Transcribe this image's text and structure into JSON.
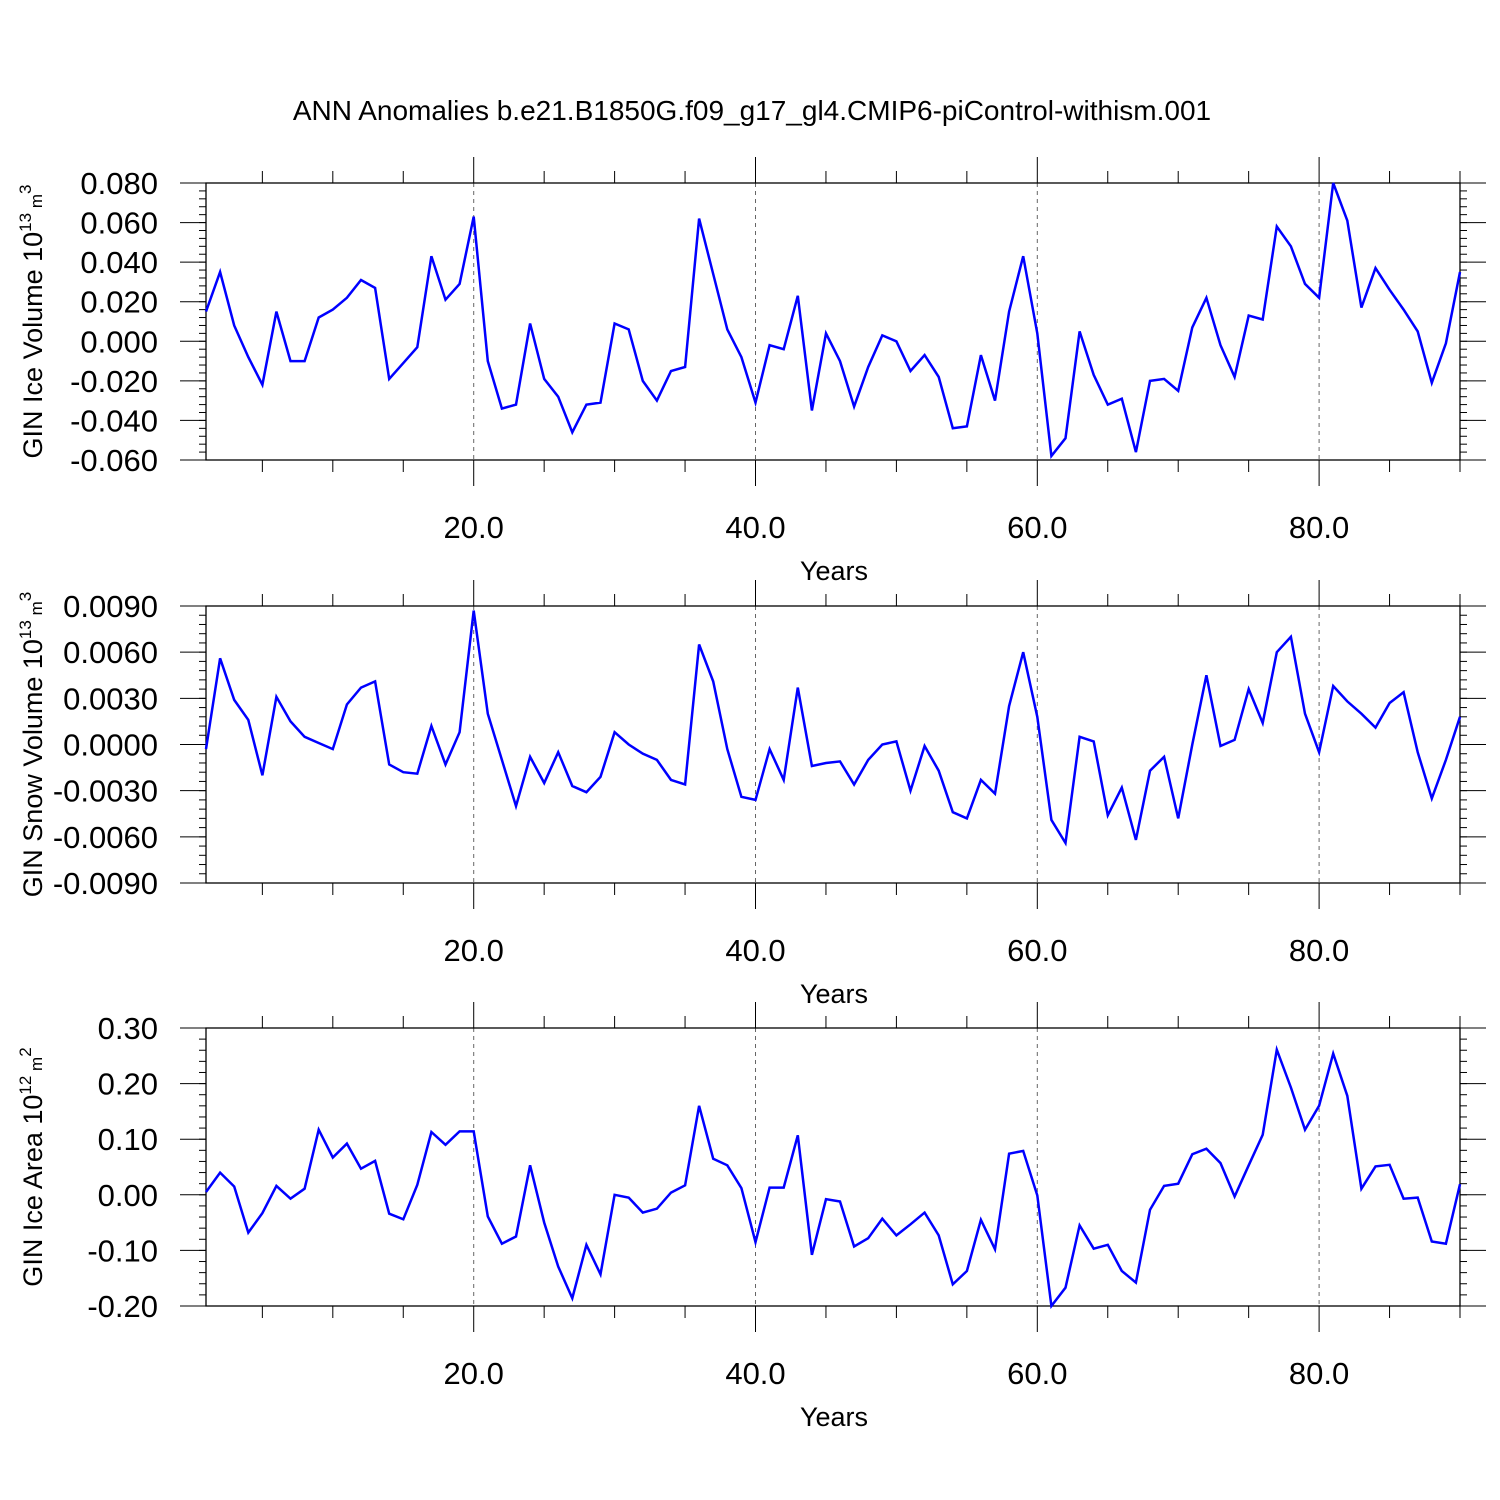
{
  "title": "ANN Anomalies b.e21.B1850G.f09_g17_gl4.CMIP6-piControl-withism.001",
  "colors": {
    "series": "#0000ff",
    "axes": "#000000",
    "reference_lines": "#666666"
  },
  "chart_data": [
    {
      "type": "line",
      "ylabel": "GIN Ice Volume 10",
      "ylabel_exp": "13",
      "ylabel_unit": " m",
      "ylabel_unit_exp": "3",
      "xlabel": "Years",
      "xlim": [
        1,
        90
      ],
      "ylim": [
        -0.06,
        0.08
      ],
      "xticks": [
        20,
        40,
        60,
        80
      ],
      "xtick_labels": [
        "20.0",
        "40.0",
        "60.0",
        "80.0"
      ],
      "yticks": [
        -0.06,
        -0.04,
        -0.02,
        0.0,
        0.02,
        0.04,
        0.06,
        0.08
      ],
      "ytick_labels": [
        "-0.060",
        "-0.040",
        "-0.020",
        "0.000",
        "0.020",
        "0.040",
        "0.060",
        "0.080"
      ],
      "reference_lines_x": [
        20,
        40,
        60,
        80
      ],
      "series": [
        {
          "values": [
            0.015,
            0.035,
            0.008,
            -0.008,
            -0.022,
            0.015,
            -0.01,
            -0.01,
            0.012,
            0.016,
            0.022,
            0.031,
            0.027,
            -0.019,
            -0.011,
            -0.003,
            0.043,
            0.021,
            0.029,
            0.063,
            -0.01,
            -0.034,
            -0.032,
            0.009,
            -0.019,
            -0.028,
            -0.046,
            -0.032,
            -0.031,
            0.009,
            0.006,
            -0.02,
            -0.03,
            -0.015,
            -0.013,
            0.062,
            0.034,
            0.006,
            -0.008,
            -0.031,
            -0.002,
            -0.004,
            0.023,
            -0.035,
            0.004,
            -0.01,
            -0.033,
            -0.013,
            0.003,
            0.0,
            -0.015,
            -0.007,
            -0.018,
            -0.044,
            -0.043,
            -0.007,
            -0.03,
            0.015,
            0.043,
            0.004,
            -0.058,
            -0.049,
            0.005,
            -0.017,
            -0.032,
            -0.029,
            -0.056,
            -0.02,
            -0.019,
            -0.025,
            0.007,
            0.022,
            -0.002,
            -0.018,
            0.013,
            0.011,
            0.058,
            0.048,
            0.029,
            0.022,
            0.08,
            0.061,
            0.017,
            0.037,
            0.026,
            0.016,
            0.005,
            -0.021,
            -0.001,
            0.035
          ]
        }
      ]
    },
    {
      "type": "line",
      "ylabel": "GIN Snow Volume 10",
      "ylabel_exp": "13",
      "ylabel_unit": " m",
      "ylabel_unit_exp": "3",
      "xlabel": "Years",
      "xlim": [
        1,
        90
      ],
      "ylim": [
        -0.009,
        0.009
      ],
      "xticks": [
        20,
        40,
        60,
        80
      ],
      "xtick_labels": [
        "20.0",
        "40.0",
        "60.0",
        "80.0"
      ],
      "yticks": [
        -0.009,
        -0.006,
        -0.003,
        0.0,
        0.003,
        0.006,
        0.009
      ],
      "ytick_labels": [
        "-0.0090",
        "-0.0060",
        "-0.0030",
        "0.0000",
        "0.0030",
        "0.0060",
        "0.0090"
      ],
      "reference_lines_x": [
        20,
        40,
        60,
        80
      ],
      "series": [
        {
          "values": [
            -0.0003,
            0.0056,
            0.0029,
            0.0016,
            -0.002,
            0.0031,
            0.0015,
            0.0005,
            0.0001,
            -0.0003,
            0.0026,
            0.0037,
            0.0041,
            -0.0013,
            -0.0018,
            -0.0019,
            0.0012,
            -0.0013,
            0.0008,
            0.0087,
            0.002,
            -0.001,
            -0.004,
            -0.0008,
            -0.0025,
            -0.0005,
            -0.0027,
            -0.0031,
            -0.0021,
            0.0008,
            0.0,
            -0.0006,
            -0.001,
            -0.0023,
            -0.0026,
            0.0065,
            0.0041,
            -0.0003,
            -0.0034,
            -0.0036,
            -0.0003,
            -0.0023,
            0.0037,
            -0.0014,
            -0.0012,
            -0.0011,
            -0.0026,
            -0.001,
            0.0,
            0.0002,
            -0.003,
            -0.0001,
            -0.0017,
            -0.0044,
            -0.0048,
            -0.0023,
            -0.0032,
            0.0025,
            0.006,
            0.0018,
            -0.0049,
            -0.0064,
            0.0005,
            0.0002,
            -0.0046,
            -0.0028,
            -0.0062,
            -0.0017,
            -0.0008,
            -0.0048,
            0.0,
            0.0045,
            -0.0001,
            0.0003,
            0.0036,
            0.0014,
            0.006,
            0.007,
            0.002,
            -0.0005,
            0.0038,
            0.0028,
            0.002,
            0.0011,
            0.0027,
            0.0034,
            -0.0005,
            -0.0035,
            -0.001,
            0.0018
          ]
        }
      ]
    },
    {
      "type": "line",
      "ylabel": "GIN Ice Area 10",
      "ylabel_exp": "12",
      "ylabel_unit": " m",
      "ylabel_unit_exp": "2",
      "xlabel": "Years",
      "xlim": [
        1,
        90
      ],
      "ylim": [
        -0.2,
        0.3
      ],
      "xticks": [
        20,
        40,
        60,
        80
      ],
      "xtick_labels": [
        "20.0",
        "40.0",
        "60.0",
        "80.0"
      ],
      "yticks": [
        -0.2,
        -0.1,
        0.0,
        0.1,
        0.2,
        0.3
      ],
      "ytick_labels": [
        "-0.20",
        "-0.10",
        "0.00",
        "0.10",
        "0.20",
        "0.30"
      ],
      "reference_lines_x": [
        20,
        40,
        60,
        80
      ],
      "series": [
        {
          "values": [
            0.005,
            0.04,
            0.015,
            -0.068,
            -0.033,
            0.016,
            -0.007,
            0.011,
            0.117,
            0.067,
            0.092,
            0.047,
            0.061,
            -0.034,
            -0.044,
            0.018,
            0.113,
            0.09,
            0.114,
            0.114,
            -0.039,
            -0.088,
            -0.075,
            0.053,
            -0.05,
            -0.129,
            -0.186,
            -0.09,
            -0.143,
            0.0,
            -0.005,
            -0.032,
            -0.025,
            0.004,
            0.017,
            0.16,
            0.065,
            0.053,
            0.012,
            -0.085,
            0.013,
            0.013,
            0.107,
            -0.108,
            -0.008,
            -0.012,
            -0.093,
            -0.078,
            -0.043,
            -0.073,
            -0.053,
            -0.032,
            -0.073,
            -0.161,
            -0.137,
            -0.045,
            -0.098,
            0.074,
            0.079,
            -0.001,
            -0.2,
            -0.167,
            -0.055,
            -0.097,
            -0.09,
            -0.137,
            -0.158,
            -0.027,
            0.016,
            0.02,
            0.073,
            0.083,
            0.057,
            -0.003,
            0.053,
            0.108,
            0.261,
            0.193,
            0.117,
            0.16,
            0.254,
            0.178,
            0.011,
            0.051,
            0.054,
            -0.007,
            -0.005,
            -0.084,
            -0.088,
            0.019
          ]
        }
      ]
    }
  ]
}
